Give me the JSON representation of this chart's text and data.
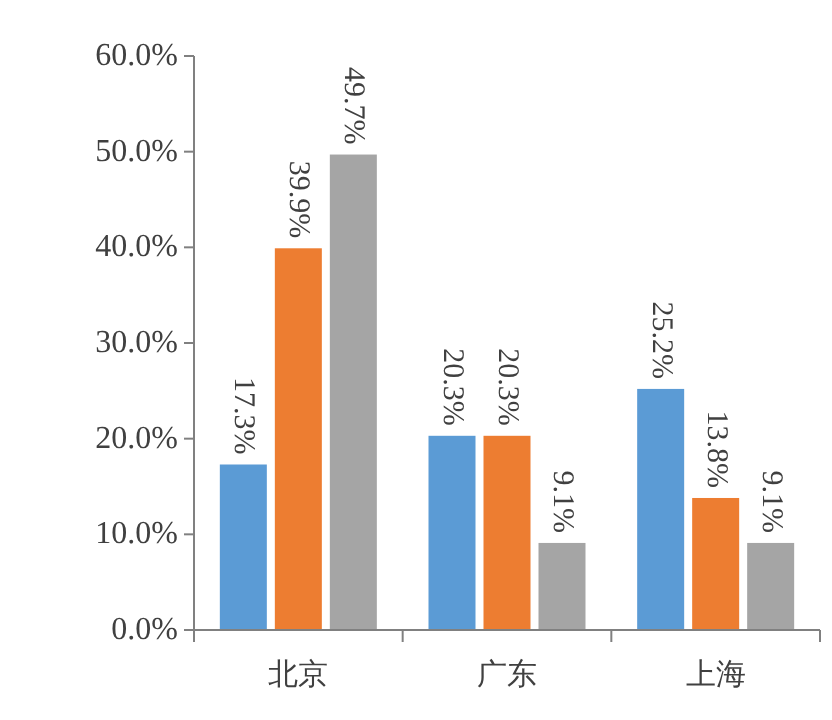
{
  "chart_data": {
    "type": "bar",
    "categories": [
      "北京",
      "广东",
      "上海"
    ],
    "series": [
      {
        "color": "#5b9bd5",
        "values": [
          17.3,
          20.3,
          25.2
        ],
        "value_labels": [
          "17.3%",
          "20.3%",
          "25.2%"
        ]
      },
      {
        "color": "#ed7d31",
        "values": [
          39.9,
          20.3,
          13.8
        ],
        "value_labels": [
          "39.9%",
          "20.3%",
          "13.8%"
        ]
      },
      {
        "color": "#a5a5a5",
        "values": [
          49.7,
          9.1,
          9.1
        ],
        "value_labels": [
          "49.7%",
          "9.1%",
          "9.1%"
        ]
      }
    ],
    "ylim": [
      0,
      60
    ],
    "yticks": [
      {
        "value": 0,
        "label": "0.0%"
      },
      {
        "value": 10,
        "label": "10.0%"
      },
      {
        "value": 20,
        "label": "20.0%"
      },
      {
        "value": 30,
        "label": "30.0%"
      },
      {
        "value": 40,
        "label": "40.0%"
      },
      {
        "value": 50,
        "label": "50.0%"
      },
      {
        "value": 60,
        "label": "60.0%"
      }
    ],
    "grid": false
  }
}
